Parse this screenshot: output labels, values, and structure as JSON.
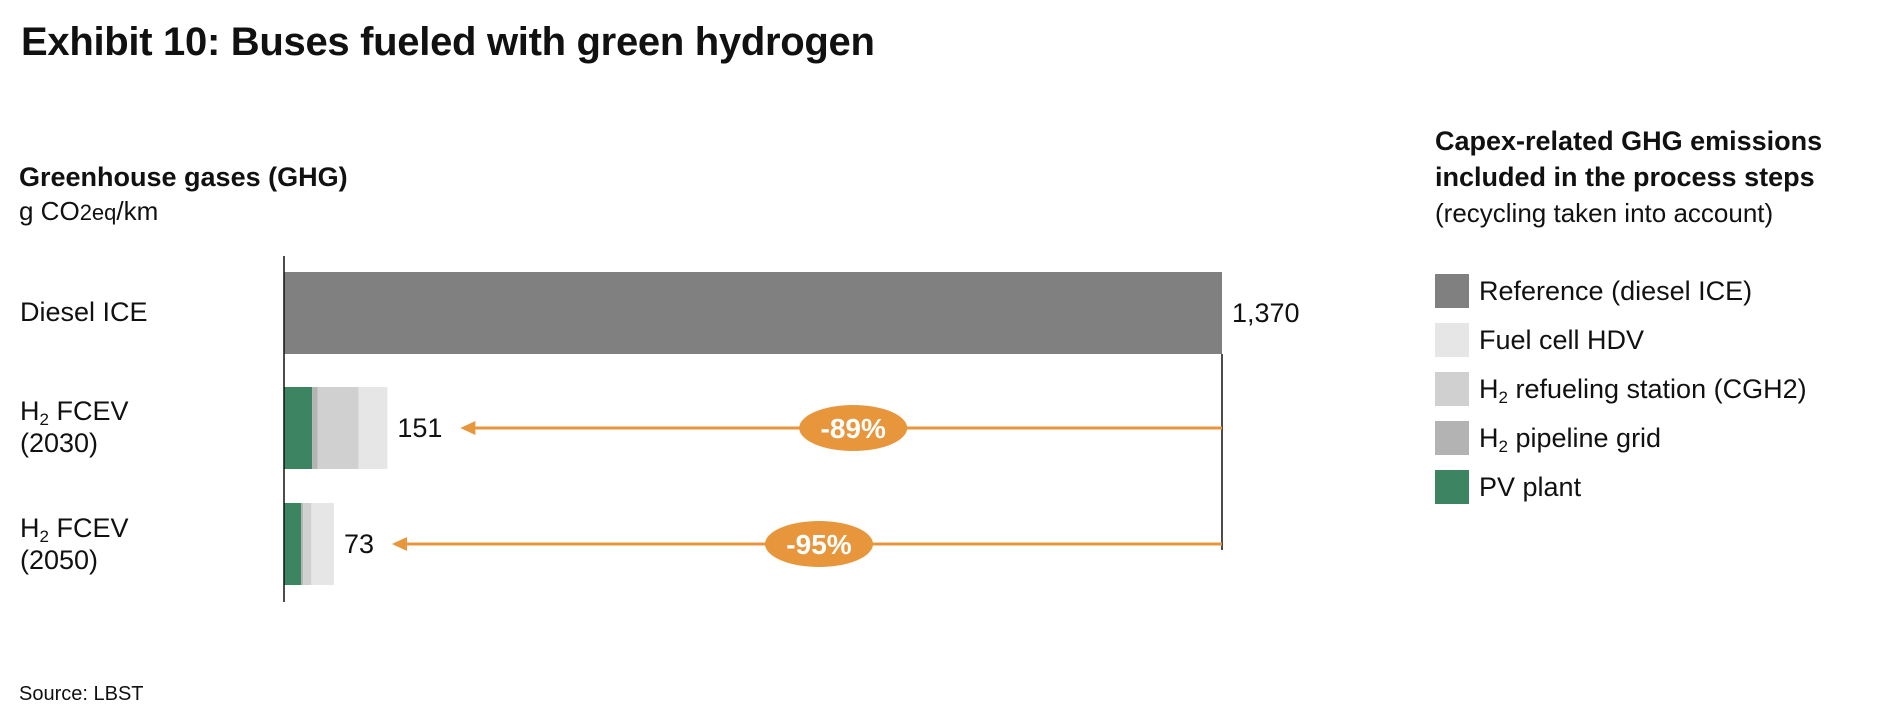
{
  "chart_data": {
    "type": "bar",
    "orientation": "horizontal",
    "stacked": true,
    "title": "Exhibit 10: Buses fueled with green hydrogen",
    "subtitle": "Greenhouse gases (GHG)",
    "unit": {
      "prefix": "g CO",
      "sub": "2eq",
      "suffix": "/km"
    },
    "categories": [
      {
        "line1": "Diesel ICE",
        "h_prefix": "",
        "h_sub": "",
        "h_rest": "",
        "line2": ""
      },
      {
        "line1": "",
        "h_prefix": "H",
        "h_sub": "2",
        "h_rest": " FCEV",
        "line2": "(2030)"
      },
      {
        "line1": "",
        "h_prefix": "H",
        "h_sub": "2",
        "h_rest": " FCEV",
        "line2": "(2050)"
      }
    ],
    "series": [
      {
        "name": "Reference (diesel ICE)",
        "color": "#7f807f",
        "values": [
          1370,
          0,
          0
        ]
      },
      {
        "name": "PV plant",
        "color": "#3c8462",
        "values": [
          0,
          41,
          25
        ]
      },
      {
        "name": "H2 pipeline grid",
        "color": "#b3b3b3",
        "values": [
          0,
          8,
          3
        ]
      },
      {
        "name": "H2 refueling station (CGH2)",
        "color": "#d0d0d0",
        "values": [
          0,
          60,
          12
        ]
      },
      {
        "name": "Fuel cell HDV",
        "color": "#e6e6e6",
        "values": [
          0,
          42,
          33
        ]
      }
    ],
    "totals": [
      "1,370",
      "151",
      "73"
    ],
    "total_values": [
      1370,
      151,
      73
    ],
    "reductions": [
      {
        "label": "-89%",
        "from_category": 0,
        "to_category": 1
      },
      {
        "label": "-95%",
        "from_category": 0,
        "to_category": 2
      }
    ],
    "xlim": [
      0,
      1370
    ],
    "grid": false,
    "arrow_color": "#e8963c",
    "legend": {
      "placement": "right",
      "title_line1": "Capex-related GHG emissions",
      "title_line2": "included in the process steps",
      "note": "(recycling taken into account)",
      "items": [
        {
          "prefix": "Reference (diesel ICE)",
          "sub": "",
          "rest": "",
          "color": "#7f807f"
        },
        {
          "prefix": "Fuel cell HDV",
          "sub": "",
          "rest": "",
          "color": "#e6e6e6"
        },
        {
          "prefix": "H",
          "sub": "2",
          "rest": " refueling station (CGH2)",
          "color": "#d0d0d0"
        },
        {
          "prefix": "H",
          "sub": "2",
          "rest": " pipeline grid",
          "color": "#b3b3b3"
        },
        {
          "prefix": "PV plant",
          "sub": "",
          "rest": "",
          "color": "#3c8462"
        }
      ]
    }
  },
  "source": "Source: LBST"
}
